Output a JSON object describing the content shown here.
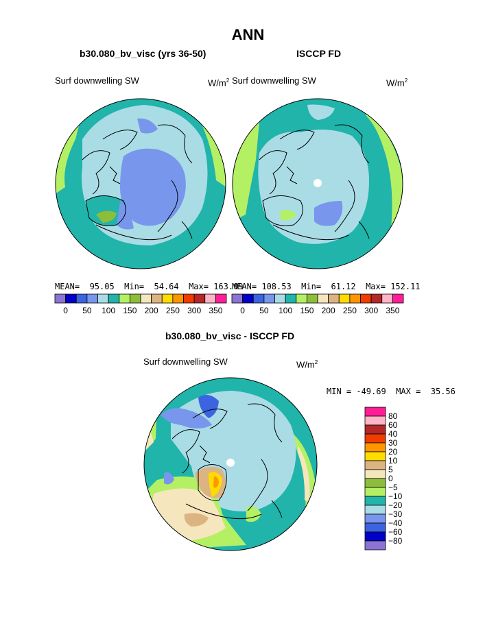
{
  "page_title": "ANN",
  "panels": [
    {
      "title": "b30.080_bv_visc (yrs 36-50)",
      "field_label": "Surf downwelling SW",
      "units": "W/m",
      "units_sup": "2",
      "stats": "MEAN=  95.05  Min=  54.64  Max= 163.09",
      "colorbar_ticks": [
        "0",
        "50",
        "100",
        "150",
        "200",
        "250",
        "300",
        "350"
      ]
    },
    {
      "title": "ISCCP FD",
      "field_label": "Surf downwelling SW",
      "units": "W/m",
      "units_sup": "2",
      "stats": "MEAN= 108.53  Min=  61.12  Max= 152.11",
      "colorbar_ticks": [
        "0",
        "50",
        "100",
        "150",
        "200",
        "250",
        "300",
        "350"
      ]
    }
  ],
  "diff_panel": {
    "title": "b30.080_bv_visc - ISCCP FD",
    "field_label": "Surf downwelling SW",
    "units": "W/m",
    "units_sup": "2",
    "stats": "MIN = -49.69  MAX =  35.56",
    "colorbar_ticks": [
      "80",
      "60",
      "40",
      "30",
      "20",
      "10",
      "5",
      "0",
      "−5",
      "−10",
      "−20",
      "−30",
      "−40",
      "−60",
      "−80"
    ]
  },
  "colors": {
    "abs_scale": [
      "#8b74d4",
      "#0000c8",
      "#3c64e0",
      "#7896ec",
      "#aadce6",
      "#20b4aa",
      "#b4f064",
      "#8cbe3c",
      "#f5e6be",
      "#dcb482",
      "#ffdc00",
      "#ff9600",
      "#f03c00",
      "#b42828",
      "#ffb4c8",
      "#ff1e96"
    ],
    "diff_scale": [
      "#ff1e96",
      "#ffb4c8",
      "#b42828",
      "#f03c00",
      "#ff9600",
      "#ffdc00",
      "#dcb482",
      "#f5e6be",
      "#8cbe3c",
      "#b4f064",
      "#20b4aa",
      "#aadce6",
      "#7896ec",
      "#3c64e0",
      "#0000c8",
      "#8b74d4"
    ]
  }
}
